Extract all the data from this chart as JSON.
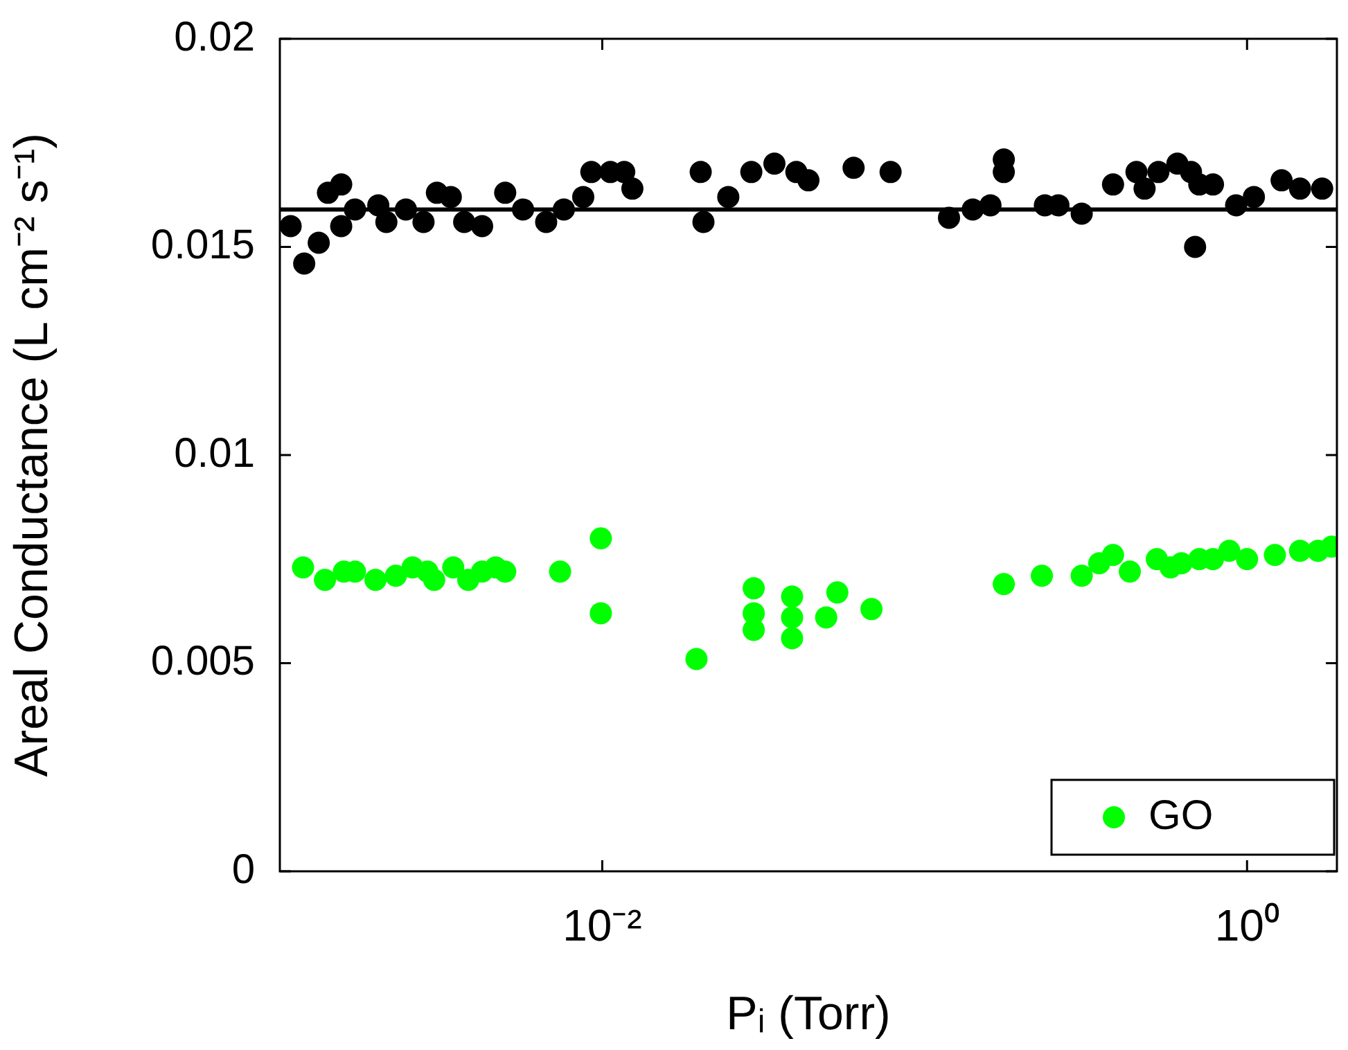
{
  "chart_data": {
    "type": "scatter",
    "xlabel": "Pᵢ (Torr)",
    "ylabel": "Areal Conductance (L cm⁻² s⁻¹)",
    "log": "x",
    "xlim": [
      0.001,
      1.9
    ],
    "ylim": [
      0,
      0.02
    ],
    "xticks": [
      {
        "value": 0.01,
        "label": "10⁻²"
      },
      {
        "value": 1,
        "label": "10⁰"
      }
    ],
    "yticks": [
      0,
      0.005,
      0.01,
      0.015,
      0.02
    ],
    "grid": false,
    "legend": "bottom right",
    "marker": "circle",
    "ref_lines": [
      {
        "axis": "y",
        "value": 0.0159,
        "color": "#000000",
        "line_style": "solid"
      }
    ],
    "series": [
      {
        "color": "#000000",
        "x": [
          0.00108,
          0.00119,
          0.00132,
          0.00141,
          0.00155,
          0.00155,
          0.00171,
          0.00202,
          0.00214,
          0.00246,
          0.00279,
          0.00307,
          0.00339,
          0.00373,
          0.00424,
          0.005,
          0.00568,
          0.0067,
          0.0076,
          0.00873,
          0.00925,
          0.0106,
          0.0117,
          0.0124,
          0.0202,
          0.0206,
          0.0246,
          0.029,
          0.0342,
          0.04,
          0.0436,
          0.0602,
          0.0784,
          0.119,
          0.141,
          0.16,
          0.176,
          0.176,
          0.236,
          0.26,
          0.307,
          0.384,
          0.454,
          0.481,
          0.531,
          0.608,
          0.67,
          0.69,
          0.711,
          0.784,
          0.925,
          1.05,
          1.28,
          1.46,
          1.71
        ],
        "values": [
          0.0155,
          0.0146,
          0.0151,
          0.0163,
          0.0165,
          0.0155,
          0.0159,
          0.016,
          0.0156,
          0.0159,
          0.0156,
          0.0163,
          0.0162,
          0.0156,
          0.0155,
          0.0163,
          0.0159,
          0.0156,
          0.0159,
          0.0162,
          0.0168,
          0.0168,
          0.0168,
          0.0164,
          0.0168,
          0.0156,
          0.0162,
          0.0168,
          0.017,
          0.0168,
          0.0166,
          0.0169,
          0.0168,
          0.0157,
          0.0159,
          0.016,
          0.0171,
          0.0168,
          0.016,
          0.016,
          0.0158,
          0.0165,
          0.0168,
          0.0164,
          0.0168,
          0.017,
          0.0168,
          0.015,
          0.0165,
          0.0165,
          0.016,
          0.0162,
          0.0166,
          0.0164,
          0.0164
        ]
      },
      {
        "name": "GO",
        "color": "#00ff00",
        "x": [
          0.00118,
          0.00138,
          0.00158,
          0.00171,
          0.00198,
          0.00229,
          0.00258,
          0.00287,
          0.00301,
          0.00345,
          0.00384,
          0.00424,
          0.00467,
          0.005,
          0.0074,
          0.0099,
          0.0099,
          0.0196,
          0.0295,
          0.0295,
          0.0295,
          0.0388,
          0.0388,
          0.0388,
          0.0495,
          0.0536,
          0.0684,
          0.176,
          0.231,
          0.307,
          0.348,
          0.384,
          0.433,
          0.525,
          0.579,
          0.626,
          0.711,
          0.784,
          0.881,
          1.0,
          1.22,
          1.46,
          1.66,
          1.83
        ],
        "values": [
          0.0073,
          0.007,
          0.0072,
          0.0072,
          0.007,
          0.0071,
          0.0073,
          0.0072,
          0.007,
          0.0073,
          0.007,
          0.0072,
          0.0073,
          0.0072,
          0.0072,
          0.008,
          0.0062,
          0.0051,
          0.0068,
          0.0062,
          0.0058,
          0.0066,
          0.0061,
          0.0056,
          0.0061,
          0.0067,
          0.0063,
          0.0069,
          0.0071,
          0.0071,
          0.0074,
          0.0076,
          0.0072,
          0.0075,
          0.0073,
          0.0074,
          0.0075,
          0.0075,
          0.0077,
          0.0075,
          0.0076,
          0.0077,
          0.0077,
          0.0078
        ]
      }
    ]
  }
}
